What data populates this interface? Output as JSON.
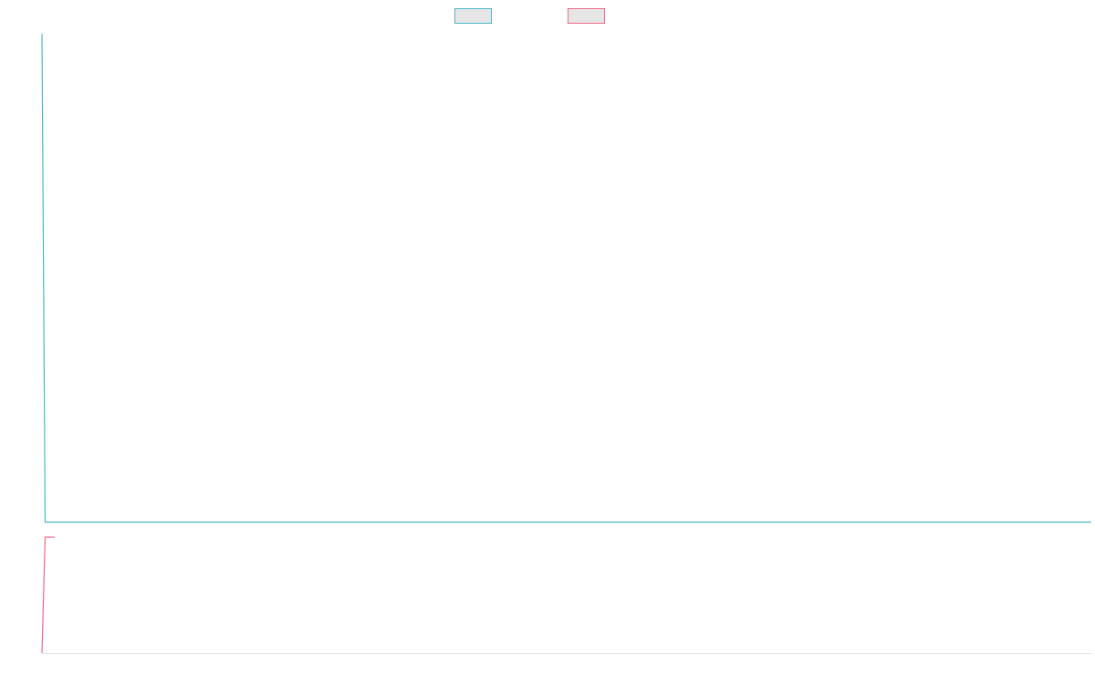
{
  "chart_data": {
    "type": "line",
    "title": "",
    "xlabel": "",
    "ylabel": "",
    "grid": false,
    "legend_position": "top-center",
    "series": [
      {
        "color": "#4bb8c4",
        "fill": "#e6e6e6",
        "points": [
          [
            0,
            100
          ],
          [
            0.3,
            3
          ],
          [
            100,
            3
          ]
        ]
      },
      {
        "color": "#f06a86",
        "fill": "#e6e6e6",
        "points": [
          [
            0,
            -23
          ],
          [
            0.3,
            0
          ],
          [
            1.2,
            0
          ]
        ]
      }
    ],
    "xlim": [
      0,
      100
    ],
    "ylim": [
      -23,
      100
    ]
  }
}
